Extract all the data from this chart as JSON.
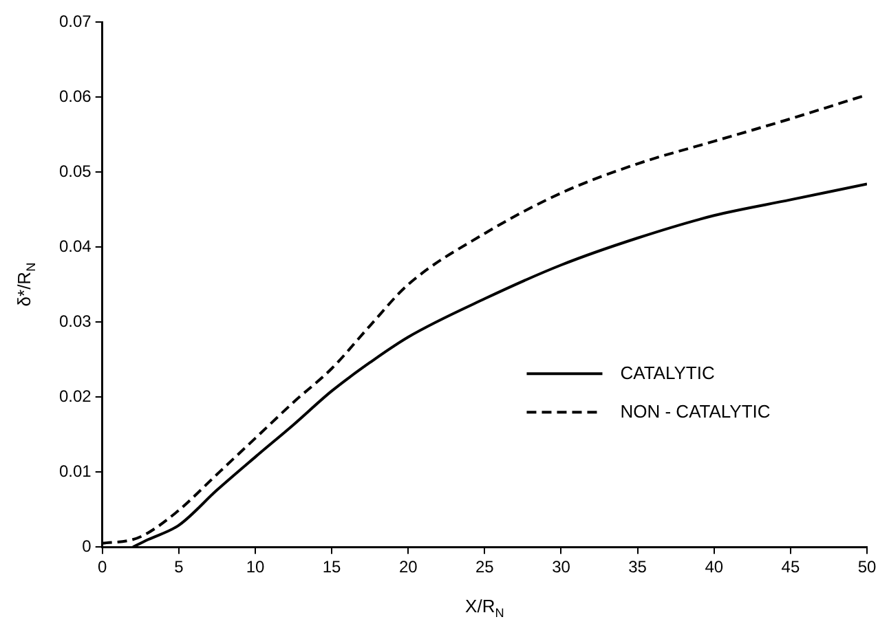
{
  "chart_data": {
    "type": "line",
    "xlabel": "X/R$_{N}$",
    "ylabel": "δ*/R$_{N}$",
    "xlim": [
      0,
      50
    ],
    "xticks": [
      0,
      5,
      10,
      15,
      20,
      25,
      30,
      35,
      40,
      45,
      50
    ],
    "ylim": [
      0,
      0.07
    ],
    "yticks": [
      0,
      0.01,
      0.02,
      0.03,
      0.04,
      0.05,
      0.06,
      0.07
    ],
    "grid": false,
    "legend": "right",
    "marker": "none",
    "series": [
      {
        "name": "CATALYTIC",
        "color": "#000000",
        "line_style": "solid",
        "x": [
          2,
          3,
          5,
          7.5,
          10,
          12.5,
          15,
          17.5,
          20,
          25,
          30,
          35,
          40,
          45,
          50
        ],
        "values": [
          0,
          0.001,
          0.0029,
          0.0076,
          0.012,
          0.0163,
          0.0208,
          0.0246,
          0.028,
          0.0331,
          0.0376,
          0.0412,
          0.0442,
          0.0463,
          0.0484
        ]
      },
      {
        "name": "NON - CATALYTIC",
        "color": "#000000",
        "line_style": "dashed",
        "x": [
          0,
          2,
          3,
          5,
          7.5,
          10,
          12.5,
          15,
          17.5,
          20,
          25,
          30,
          35,
          40,
          45,
          50
        ],
        "values": [
          0.0005,
          0.001,
          0.0019,
          0.0049,
          0.0097,
          0.0145,
          0.0193,
          0.0238,
          0.0295,
          0.035,
          0.0418,
          0.0472,
          0.0511,
          0.0541,
          0.0571,
          0.0603
        ]
      }
    ]
  }
}
